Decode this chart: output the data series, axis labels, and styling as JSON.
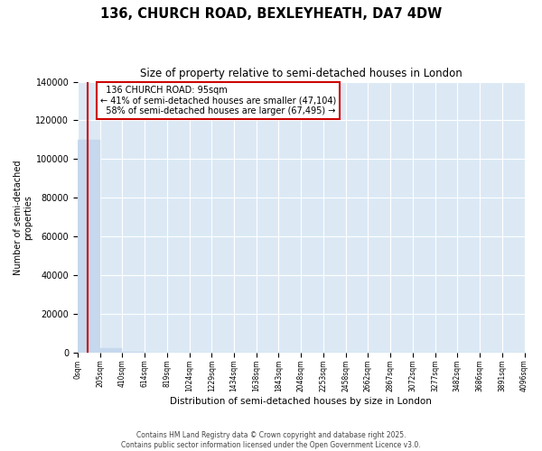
{
  "title": "136, CHURCH ROAD, BEXLEYHEATH, DA7 4DW",
  "subtitle": "Size of property relative to semi-detached houses in London",
  "xlabel": "Distribution of semi-detached houses by size in London",
  "ylabel": "Number of semi-detached\nproperties",
  "property_size": 95,
  "property_label": "136 CHURCH ROAD: 95sqm",
  "pct_smaller": 41,
  "pct_larger": 58,
  "n_smaller": 47104,
  "n_larger": 67495,
  "bin_edges": [
    0,
    205,
    410,
    614,
    819,
    1024,
    1229,
    1434,
    1638,
    1843,
    2048,
    2253,
    2458,
    2662,
    2867,
    3072,
    3277,
    3482,
    3686,
    3891,
    4096
  ],
  "bin_labels": [
    "0sqm",
    "205sqm",
    "410sqm",
    "614sqm",
    "819sqm",
    "1024sqm",
    "1229sqm",
    "1434sqm",
    "1638sqm",
    "1843sqm",
    "2048sqm",
    "2253sqm",
    "2458sqm",
    "2662sqm",
    "2867sqm",
    "3072sqm",
    "3277sqm",
    "3482sqm",
    "3686sqm",
    "3891sqm",
    "4096sqm"
  ],
  "bar_heights": [
    110000,
    2500,
    500,
    200,
    100,
    60,
    40,
    30,
    20,
    15,
    10,
    8,
    6,
    5,
    4,
    3,
    3,
    2,
    2,
    1
  ],
  "bar_color": "#c5d8ed",
  "vline_color": "#cc0000",
  "annotation_box_color": "#cc0000",
  "background_color": "#dce9f5",
  "ylim": [
    0,
    140000
  ],
  "yticks": [
    0,
    20000,
    40000,
    60000,
    80000,
    100000,
    120000,
    140000
  ],
  "footer_line1": "Contains HM Land Registry data © Crown copyright and database right 2025.",
  "footer_line2": "Contains public sector information licensed under the Open Government Licence v3.0."
}
